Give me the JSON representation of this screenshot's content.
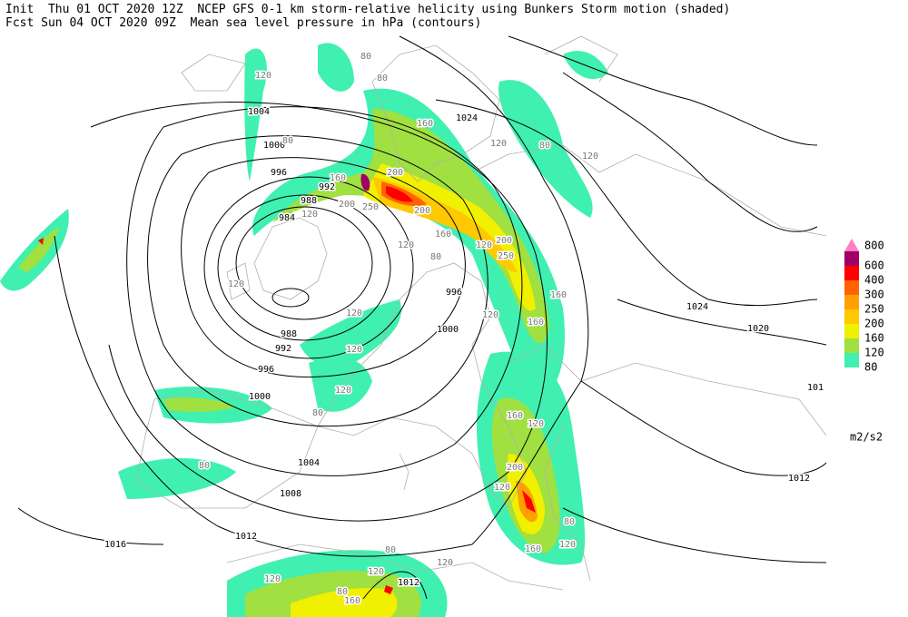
{
  "header": {
    "line1": "Init  Thu 01 OCT 2020 12Z  NCEP GFS 0-1 km storm-relative helicity using Bunkers Storm motion (shaded)",
    "line2": "Fcst Sun 04 OCT 2020 09Z  Mean sea level pressure in hPa (contours)"
  },
  "legend": {
    "unit": "m2/s2",
    "levels": [
      {
        "value": 80,
        "color": "#40f0b0"
      },
      {
        "value": 120,
        "color": "#a0e040"
      },
      {
        "value": 160,
        "color": "#f0f000"
      },
      {
        "value": 200,
        "color": "#ffc800"
      },
      {
        "value": 250,
        "color": "#ffa000"
      },
      {
        "value": 300,
        "color": "#ff6400"
      },
      {
        "value": 400,
        "color": "#ff0000"
      },
      {
        "value": 600,
        "color": "#a00064"
      },
      {
        "value": 800,
        "color": "#ff80c0"
      }
    ]
  },
  "pressure_labels": [
    1004,
    1000,
    996,
    992,
    988,
    984,
    988,
    992,
    996,
    1000,
    1004,
    1008,
    1012,
    1016,
    1024,
    1024,
    1020,
    1012,
    996,
    1000,
    1012,
    101
  ],
  "helicity_labels": [
    120,
    80,
    80,
    160,
    120,
    80,
    120,
    160,
    200,
    200,
    250,
    120,
    200,
    160,
    120,
    200,
    250,
    160,
    160,
    120,
    120,
    120,
    120,
    80,
    120,
    160,
    200,
    120,
    80,
    160,
    120,
    80,
    120,
    120,
    80,
    160,
    120,
    80,
    120,
    80,
    80,
    120
  ]
}
